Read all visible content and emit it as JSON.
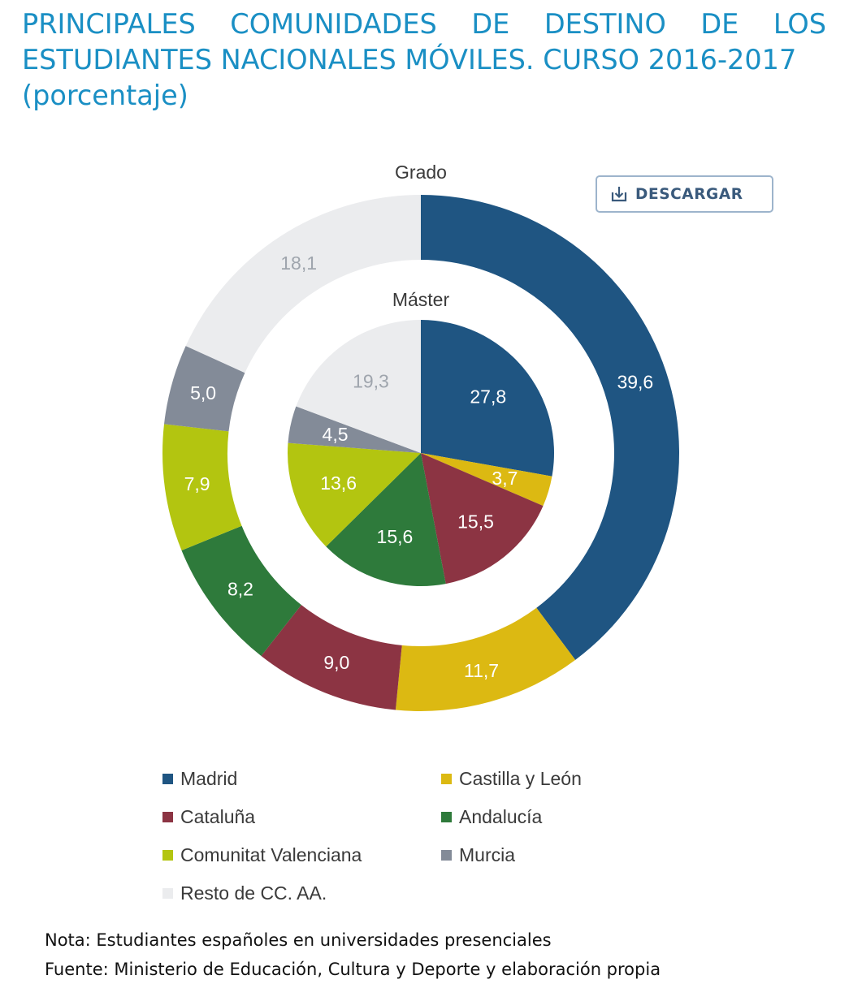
{
  "title": {
    "line1": "PRINCIPALES COMUNIDADES DE DESTINO DE LOS",
    "line2": "ESTUDIANTES NACIONALES MÓVILES. CURSO 2016-2017",
    "line3": "(porcentaje)"
  },
  "download_button": {
    "label": "DESCARGAR",
    "icon": "download-icon"
  },
  "notes": {
    "nota": "Nota: Estudiantes españoles en universidades presenciales",
    "fuente": "Fuente: Ministerio de Educación, Cultura y Deporte y elaboración propia"
  },
  "chart_data": {
    "type": "pie",
    "subtype": "nested-donut",
    "categories": [
      "Madrid",
      "Castilla y León",
      "Cataluña",
      "Andalucía",
      "Comunitat Valenciana",
      "Murcia",
      "Resto de CC. AA."
    ],
    "colors": [
      "#1f5582",
      "#dcb912",
      "#8c3443",
      "#2e7a3b",
      "#b3c510",
      "#838b98",
      "#ebecee"
    ],
    "series": [
      {
        "name": "Grado",
        "ring": "outer",
        "values": [
          39.6,
          11.7,
          9.0,
          8.2,
          7.9,
          5.0,
          18.1
        ],
        "labels": [
          "39,6",
          "11,7",
          "9,0",
          "8,2",
          "7,9",
          "5,0",
          "18,1"
        ]
      },
      {
        "name": "Máster",
        "ring": "inner",
        "values": [
          27.8,
          3.7,
          15.5,
          15.6,
          13.6,
          4.5,
          19.3
        ],
        "labels": [
          "27,8",
          "3,7",
          "15,5",
          "15,6",
          "13,6",
          "4,5",
          "19,3"
        ]
      }
    ],
    "legend": {
      "position": "bottom",
      "entries": [
        "Madrid",
        "Castilla y León",
        "Cataluña",
        "Andalucía",
        "Comunitat Valenciana",
        "Murcia",
        "Resto de CC. AA."
      ]
    },
    "label_colors": {
      "on_dark": "#ffffff",
      "on_light": "#9fa5ad"
    }
  }
}
